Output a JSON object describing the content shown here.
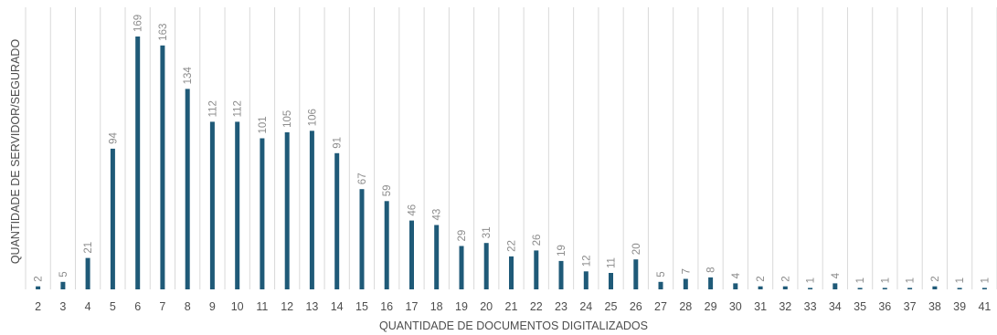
{
  "chart_data": {
    "type": "bar",
    "title": "",
    "xlabel": "QUANTIDADE DE DOCUMENTOS DIGITALIZADOS",
    "ylabel": "QUANTIDADE DE SERVIDOR/SEGURADO",
    "categories": [
      "2",
      "3",
      "4",
      "5",
      "6",
      "7",
      "8",
      "9",
      "10",
      "11",
      "12",
      "13",
      "14",
      "15",
      "16",
      "17",
      "18",
      "19",
      "20",
      "21",
      "22",
      "23",
      "24",
      "25",
      "26",
      "27",
      "28",
      "29",
      "30",
      "31",
      "32",
      "33",
      "34",
      "35",
      "36",
      "37",
      "38",
      "39",
      "41"
    ],
    "values": [
      2,
      5,
      21,
      94,
      169,
      163,
      134,
      112,
      112,
      101,
      105,
      106,
      91,
      67,
      59,
      46,
      43,
      29,
      31,
      22,
      26,
      19,
      12,
      11,
      20,
      5,
      7,
      8,
      4,
      2,
      2,
      1,
      4,
      1,
      1,
      1,
      2,
      1,
      1
    ],
    "ylim": [
      0,
      175
    ],
    "grid": "vertical",
    "legend": "none",
    "colors": {
      "bar": "#1f5a78",
      "grid": "#d9d9d9",
      "label": "#8c8c8c",
      "tick": "#4d4d4d"
    }
  }
}
